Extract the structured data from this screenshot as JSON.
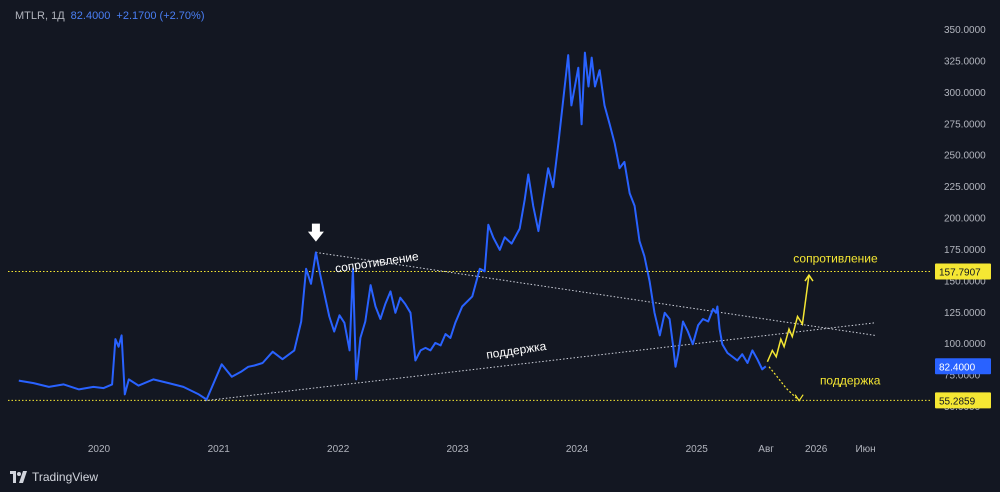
{
  "legend": {
    "symbol": "MTLR",
    "interval": "1Д",
    "price": "82.4000",
    "change": "+2.1700 (+2.70%)"
  },
  "brand": {
    "name": "TradingView",
    "icon": "tradingview-logo-icon"
  },
  "colors": {
    "background": "#131722",
    "line": "#2962ff",
    "text": "#b2b5be",
    "yellow": "#f5e733",
    "price_tag": "#2962ff",
    "level_tag": "#f5e733"
  },
  "chart_data": {
    "type": "line",
    "title": "",
    "xlabel": "",
    "ylabel": "",
    "ylim": [
      40,
      360
    ],
    "x_ticks": [
      "2020",
      "2021",
      "2022",
      "2023",
      "2024",
      "2025",
      "Авг",
      "2026",
      "Июн"
    ],
    "x_tick_dates": [
      "2020-01-01",
      "2021-01-01",
      "2022-01-01",
      "2023-01-01",
      "2024-01-01",
      "2025-01-01",
      "2025-08-01",
      "2026-01-01",
      "2026-06-01"
    ],
    "y_ticks": [
      {
        "value": 350,
        "label": "350.0000"
      },
      {
        "value": 325,
        "label": "325.0000"
      },
      {
        "value": 300,
        "label": "300.0000"
      },
      {
        "value": 275,
        "label": "275.0000"
      },
      {
        "value": 250,
        "label": "250.0000"
      },
      {
        "value": 225,
        "label": "225.0000"
      },
      {
        "value": 200,
        "label": "200.0000"
      },
      {
        "value": 175,
        "label": "175.0000"
      },
      {
        "value": 150,
        "label": "150.0000"
      },
      {
        "value": 125,
        "label": "125.0000"
      },
      {
        "value": 100,
        "label": "100.0000"
      },
      {
        "value": 75,
        "label": "75.0000"
      },
      {
        "value": 50,
        "label": "50.0000"
      }
    ],
    "series": [
      {
        "values": [
          [
            "2019-05-01",
            71
          ],
          [
            "2019-06-15",
            69
          ],
          [
            "2019-08-01",
            66
          ],
          [
            "2019-09-15",
            68
          ],
          [
            "2019-11-01",
            64
          ],
          [
            "2019-12-15",
            66
          ],
          [
            "2020-01-15",
            65
          ],
          [
            "2020-02-10",
            68
          ],
          [
            "2020-02-20",
            104
          ],
          [
            "2020-03-01",
            98
          ],
          [
            "2020-03-10",
            107
          ],
          [
            "2020-03-20",
            60
          ],
          [
            "2020-04-01",
            72
          ],
          [
            "2020-05-01",
            67
          ],
          [
            "2020-06-15",
            72
          ],
          [
            "2020-08-01",
            69
          ],
          [
            "2020-09-15",
            66
          ],
          [
            "2020-11-01",
            60
          ],
          [
            "2020-11-25",
            56
          ],
          [
            "2020-12-10",
            65
          ],
          [
            "2021-01-10",
            84
          ],
          [
            "2021-02-10",
            74
          ],
          [
            "2021-03-10",
            78
          ],
          [
            "2021-04-01",
            82
          ],
          [
            "2021-04-20",
            83
          ],
          [
            "2021-05-15",
            85
          ],
          [
            "2021-06-15",
            94
          ],
          [
            "2021-07-15",
            88
          ],
          [
            "2021-08-20",
            95
          ],
          [
            "2021-09-10",
            118
          ],
          [
            "2021-09-25",
            160
          ],
          [
            "2021-10-10",
            148
          ],
          [
            "2021-10-25",
            173
          ],
          [
            "2021-11-05",
            158
          ],
          [
            "2021-11-20",
            140
          ],
          [
            "2021-12-05",
            122
          ],
          [
            "2021-12-20",
            110
          ],
          [
            "2022-01-05",
            123
          ],
          [
            "2022-01-20",
            117
          ],
          [
            "2022-02-05",
            95
          ],
          [
            "2022-02-15",
            160
          ],
          [
            "2022-02-25",
            72
          ],
          [
            "2022-03-10",
            105
          ],
          [
            "2022-03-25",
            118
          ],
          [
            "2022-04-10",
            147
          ],
          [
            "2022-04-25",
            130
          ],
          [
            "2022-05-10",
            120
          ],
          [
            "2022-05-25",
            132
          ],
          [
            "2022-06-10",
            142
          ],
          [
            "2022-06-25",
            125
          ],
          [
            "2022-07-10",
            137
          ],
          [
            "2022-07-25",
            132
          ],
          [
            "2022-08-10",
            125
          ],
          [
            "2022-08-25",
            87
          ],
          [
            "2022-09-10",
            95
          ],
          [
            "2022-09-25",
            97
          ],
          [
            "2022-10-10",
            95
          ],
          [
            "2022-10-25",
            101
          ],
          [
            "2022-11-10",
            99
          ],
          [
            "2022-11-25",
            108
          ],
          [
            "2022-12-10",
            105
          ],
          [
            "2022-12-25",
            117
          ],
          [
            "2023-01-15",
            130
          ],
          [
            "2023-02-15",
            138
          ],
          [
            "2023-03-10",
            160
          ],
          [
            "2023-03-25",
            158
          ],
          [
            "2023-04-05",
            195
          ],
          [
            "2023-04-20",
            185
          ],
          [
            "2023-05-10",
            175
          ],
          [
            "2023-05-25",
            185
          ],
          [
            "2023-06-15",
            180
          ],
          [
            "2023-07-10",
            192
          ],
          [
            "2023-07-25",
            215
          ],
          [
            "2023-08-05",
            235
          ],
          [
            "2023-08-20",
            210
          ],
          [
            "2023-09-05",
            190
          ],
          [
            "2023-09-20",
            215
          ],
          [
            "2023-10-05",
            240
          ],
          [
            "2023-10-20",
            225
          ],
          [
            "2023-11-05",
            260
          ],
          [
            "2023-11-20",
            295
          ],
          [
            "2023-12-05",
            330
          ],
          [
            "2023-12-15",
            290
          ],
          [
            "2024-01-05",
            320
          ],
          [
            "2024-01-15",
            275
          ],
          [
            "2024-01-25",
            332
          ],
          [
            "2024-02-05",
            305
          ],
          [
            "2024-02-15",
            328
          ],
          [
            "2024-02-25",
            305
          ],
          [
            "2024-03-10",
            318
          ],
          [
            "2024-03-25",
            290
          ],
          [
            "2024-04-10",
            275
          ],
          [
            "2024-04-25",
            260
          ],
          [
            "2024-05-10",
            240
          ],
          [
            "2024-05-25",
            245
          ],
          [
            "2024-06-10",
            220
          ],
          [
            "2024-06-25",
            210
          ],
          [
            "2024-07-10",
            182
          ],
          [
            "2024-07-25",
            170
          ],
          [
            "2024-08-10",
            150
          ],
          [
            "2024-08-25",
            125
          ],
          [
            "2024-09-10",
            107
          ],
          [
            "2024-09-25",
            125
          ],
          [
            "2024-10-10",
            120
          ],
          [
            "2024-10-20",
            100
          ],
          [
            "2024-10-28",
            82
          ],
          [
            "2024-11-05",
            92
          ],
          [
            "2024-11-20",
            118
          ],
          [
            "2024-12-05",
            110
          ],
          [
            "2024-12-20",
            100
          ],
          [
            "2025-01-05",
            115
          ],
          [
            "2025-01-20",
            120
          ],
          [
            "2025-02-05",
            118
          ],
          [
            "2025-02-20",
            128
          ],
          [
            "2025-03-01",
            125
          ],
          [
            "2025-03-05",
            130
          ],
          [
            "2025-03-12",
            112
          ],
          [
            "2025-03-20",
            100
          ],
          [
            "2025-04-05",
            93
          ],
          [
            "2025-04-20",
            90
          ],
          [
            "2025-05-05",
            87
          ],
          [
            "2025-05-20",
            92
          ],
          [
            "2025-06-05",
            85
          ],
          [
            "2025-06-20",
            95
          ],
          [
            "2025-07-05",
            88
          ],
          [
            "2025-07-20",
            80
          ],
          [
            "2025-07-31",
            82.4
          ]
        ]
      }
    ],
    "horizontal_levels": [
      {
        "value": 157.7907,
        "label": "157.7907"
      },
      {
        "value": 55.2859,
        "label": "55.2859"
      }
    ],
    "last_price": {
      "value": 82.4,
      "label": "82.4000"
    },
    "trendlines": [
      {
        "name": "resistance",
        "from": [
          "2021-10-25",
          173
        ],
        "to": [
          "2026-06-30",
          107
        ]
      },
      {
        "name": "support",
        "from": [
          "2020-11-20",
          55
        ],
        "to": [
          "2026-06-30",
          117
        ]
      }
    ],
    "projection_up": [
      [
        "2025-08-05",
        86
      ],
      [
        "2025-08-20",
        95
      ],
      [
        "2025-09-01",
        90
      ],
      [
        "2025-09-15",
        104
      ],
      [
        "2025-09-25",
        98
      ],
      [
        "2025-10-10",
        112
      ],
      [
        "2025-10-20",
        106
      ],
      [
        "2025-11-05",
        122
      ],
      [
        "2025-11-20",
        116
      ],
      [
        "2025-12-10",
        155
      ]
    ],
    "projection_down": [
      [
        "2025-08-10",
        82
      ],
      [
        "2025-09-01",
        75
      ],
      [
        "2025-10-01",
        65
      ],
      [
        "2025-11-10",
        55
      ]
    ],
    "annotations": [
      {
        "text": "сопротивление",
        "at": [
          "2022-05-01",
          162
        ],
        "angle": -8.5,
        "color": "white"
      },
      {
        "text": "поддержка",
        "at": [
          "2023-07-01",
          92
        ],
        "angle": -8.5,
        "color": "white"
      },
      {
        "text": "сопротивление",
        "at": [
          "2026-03-01",
          165
        ],
        "angle": 0,
        "color": "yellow"
      },
      {
        "text": "поддержка",
        "at": [
          "2026-04-15",
          68
        ],
        "angle": 0,
        "color": "yellow"
      }
    ],
    "marker": {
      "icon": "down-arrow-icon",
      "at": [
        "2021-10-25",
        188
      ]
    }
  }
}
